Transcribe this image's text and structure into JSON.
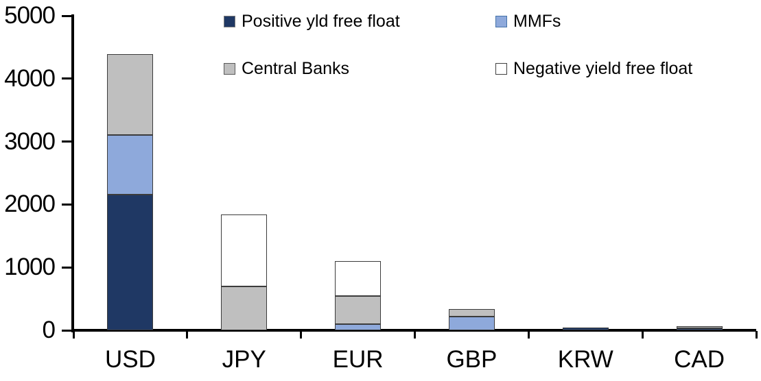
{
  "chart_data": {
    "type": "bar",
    "stacked": true,
    "title": "",
    "xlabel": "",
    "ylabel": "",
    "categories": [
      "USD",
      "JPY",
      "EUR",
      "GBP",
      "KRW",
      "CAD"
    ],
    "series": [
      {
        "name": "Positive yld free float",
        "color": "#1F3864",
        "swatch_border": "#7F7F7F",
        "values": [
          2160,
          0,
          0,
          0,
          40,
          30
        ]
      },
      {
        "name": "MMFs",
        "color": "#8EA9DB",
        "swatch_border": "#4472A8",
        "values": [
          940,
          0,
          100,
          220,
          0,
          0
        ]
      },
      {
        "name": "Central Banks",
        "color": "#BFBFBF",
        "swatch_border": "#595959",
        "values": [
          1290,
          700,
          440,
          120,
          0,
          35
        ]
      },
      {
        "name": "Negative yield free float",
        "color": "#FFFFFF",
        "swatch_border": "#404040",
        "values": [
          0,
          1140,
          560,
          0,
          0,
          0
        ]
      }
    ],
    "totals_by_category": [
      4390,
      1840,
      1100,
      340,
      40,
      65
    ],
    "ylim": [
      0,
      5000
    ],
    "yticks": [
      0,
      1000,
      2000,
      3000,
      4000,
      5000
    ],
    "ytick_labels": [
      "0",
      "1000",
      "2000",
      "3000",
      "4000",
      "5000"
    ],
    "grid": false,
    "legend_position": "top",
    "legend_layout": "2x2",
    "bar_outline": "#3B3B3B",
    "axis_color": "#000000",
    "text_color": "#000000",
    "background_color": "#FFFFFF"
  }
}
